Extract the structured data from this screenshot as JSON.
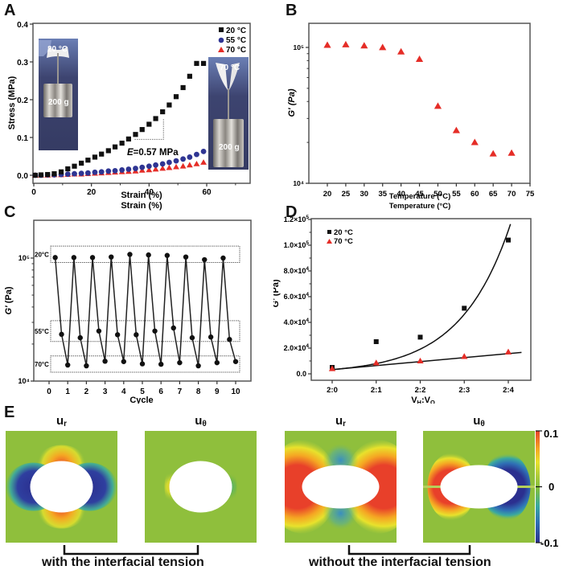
{
  "panels": {
    "A": "A",
    "B": "B",
    "C": "C",
    "D": "D",
    "E": "E"
  },
  "chart_data": [
    {
      "id": "A",
      "type": "scatter",
      "xlabel": "Strain (%)",
      "ylabel": "Stress (MPa)",
      "xlim": [
        0,
        75
      ],
      "ylim": [
        -0.01,
        0.4
      ],
      "xticks": [
        0,
        20,
        40,
        60
      ],
      "xtick_labels": [
        "0",
        "20",
        "40",
        "60"
      ],
      "yticks": [
        0.0,
        0.1,
        0.2,
        0.3,
        0.4
      ],
      "ytick_labels": [
        "0.0",
        "0.1",
        "0.2",
        "0.3",
        "0.4"
      ],
      "legend_position": "top-right",
      "series": [
        {
          "name": "20 °C",
          "marker": "square",
          "color": "#111111",
          "x": [
            0.5,
            2.5,
            4.8,
            7.1,
            9.5,
            11.8,
            14.1,
            16.5,
            18.8,
            21.2,
            23.5,
            25.9,
            28.2,
            30.6,
            32.9,
            35.3,
            37.6,
            40.0,
            42.3,
            44.7,
            47.0,
            49.4,
            51.8,
            54.1,
            56.5,
            58.9
          ],
          "y": [
            0.0,
            0.001,
            0.002,
            0.004,
            0.009,
            0.017,
            0.024,
            0.032,
            0.04,
            0.048,
            0.056,
            0.065,
            0.075,
            0.085,
            0.096,
            0.108,
            0.121,
            0.135,
            0.15,
            0.168,
            0.186,
            0.208,
            0.232,
            0.262,
            0.296,
            0.296
          ]
        },
        {
          "name": "55 °C",
          "marker": "circle",
          "color": "#2f3593",
          "x": [
            0.5,
            2.5,
            4.8,
            7.1,
            9.5,
            11.8,
            14.1,
            16.5,
            18.8,
            21.2,
            23.5,
            25.9,
            28.2,
            30.6,
            32.9,
            35.3,
            37.6,
            40.0,
            42.3,
            44.7,
            47.0,
            49.4,
            51.8,
            54.1,
            56.5,
            58.9
          ],
          "y": [
            0.0,
            0.0,
            0.001,
            0.001,
            0.002,
            0.003,
            0.004,
            0.005,
            0.006,
            0.008,
            0.009,
            0.011,
            0.012,
            0.014,
            0.016,
            0.018,
            0.021,
            0.024,
            0.027,
            0.03,
            0.034,
            0.038,
            0.043,
            0.048,
            0.055,
            0.063
          ]
        },
        {
          "name": "70 °C",
          "marker": "triangle",
          "color": "#e52d27",
          "x": [
            0.5,
            2.5,
            4.8,
            7.1,
            9.5,
            11.8,
            14.1,
            16.5,
            18.8,
            21.2,
            23.5,
            25.9,
            28.2,
            30.6,
            32.9,
            35.3,
            37.6,
            40.0,
            42.3,
            44.7,
            47.0,
            49.4,
            51.8,
            54.1,
            56.5,
            58.9
          ],
          "y": [
            0.0,
            0.0,
            0.0,
            0.001,
            0.001,
            0.002,
            0.003,
            0.003,
            0.004,
            0.005,
            0.006,
            0.007,
            0.008,
            0.009,
            0.01,
            0.011,
            0.013,
            0.014,
            0.016,
            0.018,
            0.02,
            0.022,
            0.024,
            0.027,
            0.03,
            0.034
          ]
        }
      ],
      "annotations": [
        {
          "text_prefix": "E",
          "text": "=0.57 MPa",
          "kind": "slope-triangle",
          "x_range": [
            35,
            45
          ],
          "y_range": [
            0.095,
            0.15
          ]
        },
        {
          "text": "20 °C",
          "kind": "photo-inset-label"
        },
        {
          "text": "200 g",
          "kind": "photo-inset-label"
        },
        {
          "text": "70 °C",
          "kind": "photo-inset-label"
        },
        {
          "text": "200 g",
          "kind": "photo-inset-label"
        }
      ]
    },
    {
      "id": "B",
      "type": "scatter",
      "xlabel": "Temperature (°C)",
      "ylabel": "G′ (Pa)",
      "xlim": [
        15,
        75
      ],
      "ylim_log10": [
        4,
        5.18
      ],
      "yscale": "log",
      "xticks": [
        20,
        25,
        30,
        35,
        40,
        45,
        50,
        55,
        60,
        65,
        70,
        75
      ],
      "ytick_labels": [
        "10⁴",
        "10⁵"
      ],
      "series": [
        {
          "name": "G′",
          "marker": "triangle",
          "color": "#e52d27",
          "x": [
            20,
            25,
            30,
            35,
            40,
            45,
            50,
            55,
            60,
            65,
            70
          ],
          "y": [
            104000,
            105000,
            103000,
            100000,
            93000,
            82000,
            37000,
            24500,
            20000,
            16500,
            16700
          ]
        }
      ]
    },
    {
      "id": "C",
      "type": "line",
      "xlabel": "Cycle",
      "ylabel": "G′ (Pa)",
      "xlim": [
        -0.9,
        11.2
      ],
      "ylim_log10": [
        4,
        5.3
      ],
      "yscale": "log",
      "xticks": [
        0,
        1,
        2,
        3,
        4,
        5,
        6,
        7,
        8,
        9,
        10
      ],
      "ytick_labels": [
        "10⁴",
        "10⁵"
      ],
      "series": [
        {
          "name": "G′",
          "marker": "circle",
          "color": "#111111",
          "x": [
            0.33,
            0.67,
            1.0,
            1.33,
            1.67,
            2.0,
            2.33,
            2.67,
            3.0,
            3.33,
            3.67,
            4.0,
            4.33,
            4.67,
            5.0,
            5.33,
            5.67,
            6.0,
            6.33,
            6.67,
            7.0,
            7.33,
            7.67,
            8.0,
            8.33,
            8.67,
            9.0,
            9.33,
            9.67,
            10.0
          ],
          "y": [
            101000,
            24000,
            13500,
            101000,
            22500,
            13300,
            101000,
            25500,
            14500,
            102000,
            23800,
            14400,
            107000,
            23800,
            13800,
            106000,
            25500,
            13700,
            105000,
            27000,
            14100,
            102000,
            22500,
            13300,
            97000,
            22800,
            14100,
            100000,
            21800,
            14400
          ]
        }
      ],
      "annotations": [
        {
          "text": "20°C",
          "kind": "dotted-band"
        },
        {
          "text": "55°C",
          "kind": "dotted-band"
        },
        {
          "text": "70°C",
          "kind": "dotted-band"
        }
      ]
    },
    {
      "id": "D",
      "type": "scatter",
      "xlabel": "VH:VO",
      "xlabel_main": "V",
      "xlabel_sub1": "H",
      "xlabel_mid": ":V",
      "xlabel_sub2": "O",
      "ylabel": "G′ (Pa)",
      "categories": [
        "2:0",
        "2:1",
        "2:2",
        "2:3",
        "2:4"
      ],
      "ylim": [
        -3000,
        120000
      ],
      "yticks": [
        0,
        20000,
        40000,
        60000,
        80000,
        100000,
        120000
      ],
      "ytick_labels": [
        {
          "base": "0.0",
          "exp": ""
        },
        {
          "base": "2.0×10",
          "exp": "4"
        },
        {
          "base": "4.0×10",
          "exp": "4"
        },
        {
          "base": "6.0×10",
          "exp": "4"
        },
        {
          "base": "8.0×10",
          "exp": "4"
        },
        {
          "base": "1.0×10",
          "exp": "5"
        },
        {
          "base": "1.2×10",
          "exp": "5"
        }
      ],
      "legend_position": "top-left",
      "series": [
        {
          "name": "20 °C",
          "marker": "square",
          "color": "#111111",
          "values": [
            5000,
            25000,
            28500,
            51000,
            104000
          ],
          "fit": "exponential"
        },
        {
          "name": "70 °C",
          "marker": "triangle",
          "color": "#e52d27",
          "values": [
            4000,
            8500,
            10000,
            13500,
            17000
          ],
          "fit": "linear"
        }
      ]
    },
    {
      "id": "E",
      "type": "heatmap",
      "fields": [
        {
          "title_main": "u",
          "title_sub": "r",
          "group": "with"
        },
        {
          "title_main": "u",
          "title_sub": "θ",
          "group": "with"
        },
        {
          "title_main": "u",
          "title_sub": "r",
          "group": "without"
        },
        {
          "title_main": "u",
          "title_sub": "θ",
          "group": "without"
        }
      ],
      "groups": {
        "with": "with the interfacial tension",
        "without": "without the interfacial tension"
      },
      "colorbar": {
        "min": -0.1,
        "max": 0.1,
        "tick_labels": [
          "0.1",
          "0",
          "-0.1"
        ]
      },
      "colormap": [
        "#2b2f8f",
        "#2f6fb5",
        "#3aa9a0",
        "#7fbf3f",
        "#a6c93a",
        "#e8e22c",
        "#f5a623",
        "#e8402a"
      ]
    }
  ]
}
